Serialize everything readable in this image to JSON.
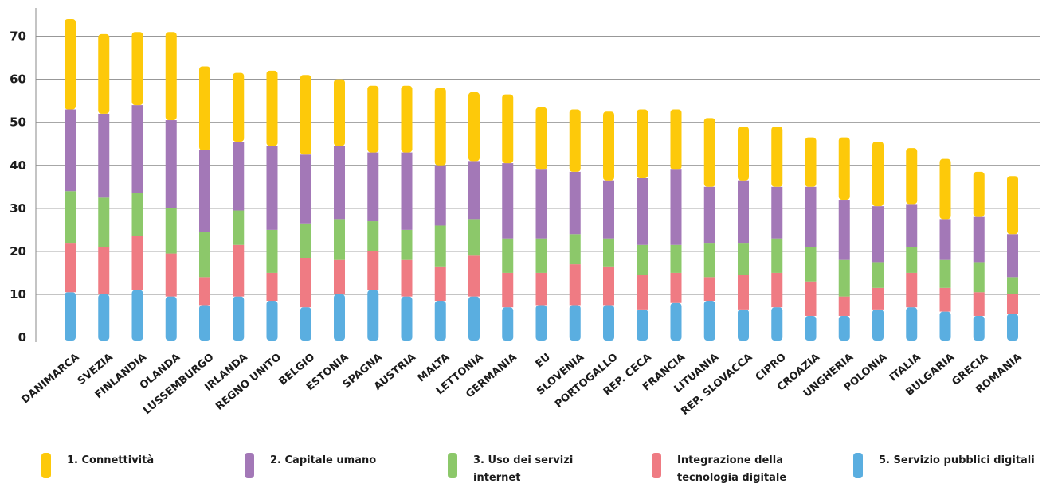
{
  "chart_data": {
    "type": "bar",
    "stacked": true,
    "categories": [
      "DANIMARCA",
      "SVEZIA",
      "FINLANDIA",
      "OLANDA",
      "LUSSEMBURGO",
      "IRLANDA",
      "REGNO UNITO",
      "BELGIO",
      "ESTONIA",
      "SPAGNA",
      "AUSTRIA",
      "MALTA",
      "LETTONIA",
      "GERMANIA",
      "EU",
      "SLOVENIA",
      "PORTOGALLO",
      "REP. CECA",
      "FRANCIA",
      "LITUANIA",
      "REP. SLOVACCA",
      "CIPRO",
      "CROAZIA",
      "UNGHERIA",
      "POLONIA",
      "ITALIA",
      "BULGARIA",
      "GRECIA",
      "ROMANIA"
    ],
    "highlight_category": "ITALIA",
    "highlight_color": "#5aaee0",
    "yticks": [
      0,
      10,
      20,
      30,
      40,
      50,
      60,
      70
    ],
    "ylim": [
      0,
      74
    ],
    "grid": true,
    "series": [
      {
        "name": "5. Servizio pubblici digitali",
        "color": "#5aaee0",
        "values": [
          10.5,
          10.0,
          11.0,
          9.5,
          7.5,
          9.5,
          8.5,
          7.0,
          10.0,
          11.0,
          9.5,
          8.5,
          9.5,
          7.0,
          7.5,
          7.5,
          7.5,
          6.5,
          8.0,
          8.5,
          6.5,
          7.0,
          5.0,
          5.0,
          6.5,
          7.0,
          6.0,
          5.0,
          5.5
        ]
      },
      {
        "name": "Integrazione della tecnologia digitale",
        "color": "#ef7b83",
        "values": [
          11.5,
          11.0,
          12.5,
          10.0,
          6.5,
          12.0,
          6.5,
          11.5,
          8.0,
          9.0,
          8.5,
          8.0,
          9.5,
          8.0,
          7.5,
          9.5,
          9.0,
          8.0,
          7.0,
          5.5,
          8.0,
          8.0,
          8.0,
          4.5,
          5.0,
          8.0,
          5.5,
          5.5,
          4.5
        ]
      },
      {
        "name": "3. Uso dei servizi internet",
        "color": "#8cc86a",
        "values": [
          12.0,
          11.5,
          10.0,
          10.5,
          10.5,
          8.0,
          10.0,
          8.0,
          9.5,
          7.0,
          7.0,
          9.5,
          8.5,
          8.0,
          8.0,
          7.0,
          6.5,
          7.0,
          6.5,
          8.0,
          7.5,
          8.0,
          8.0,
          8.5,
          6.0,
          6.0,
          6.5,
          7.0,
          4.0
        ]
      },
      {
        "name": "2. Capitale umano",
        "color": "#a378b7",
        "values": [
          19.0,
          19.5,
          20.5,
          20.5,
          19.0,
          16.0,
          19.5,
          16.0,
          17.0,
          16.0,
          18.0,
          14.0,
          13.5,
          17.5,
          16.0,
          14.5,
          13.5,
          15.5,
          17.5,
          13.0,
          14.5,
          12.0,
          14.0,
          14.0,
          13.0,
          10.0,
          9.5,
          10.5,
          10.0
        ]
      },
      {
        "name": "1. Connettività",
        "color": "#fdc90a",
        "values": [
          21.0,
          18.5,
          17.0,
          20.5,
          19.5,
          16.0,
          17.5,
          18.5,
          15.5,
          15.5,
          15.5,
          18.0,
          16.0,
          16.0,
          14.5,
          14.5,
          16.0,
          16.0,
          14.0,
          16.0,
          12.5,
          14.0,
          11.5,
          14.5,
          15.0,
          13.0,
          14.0,
          10.5,
          13.5
        ]
      }
    ]
  },
  "legend": [
    {
      "label": "1. Connettività",
      "color": "#fdc90a"
    },
    {
      "label": "2. Capitale umano",
      "color": "#a378b7"
    },
    {
      "label": "3. Uso dei servizi internet",
      "color": "#8cc86a"
    },
    {
      "label": "Integrazione della tecnologia digitale",
      "color": "#ef7b83"
    },
    {
      "label": "5. Servizio pubblici digitali",
      "color": "#5aaee0"
    }
  ]
}
